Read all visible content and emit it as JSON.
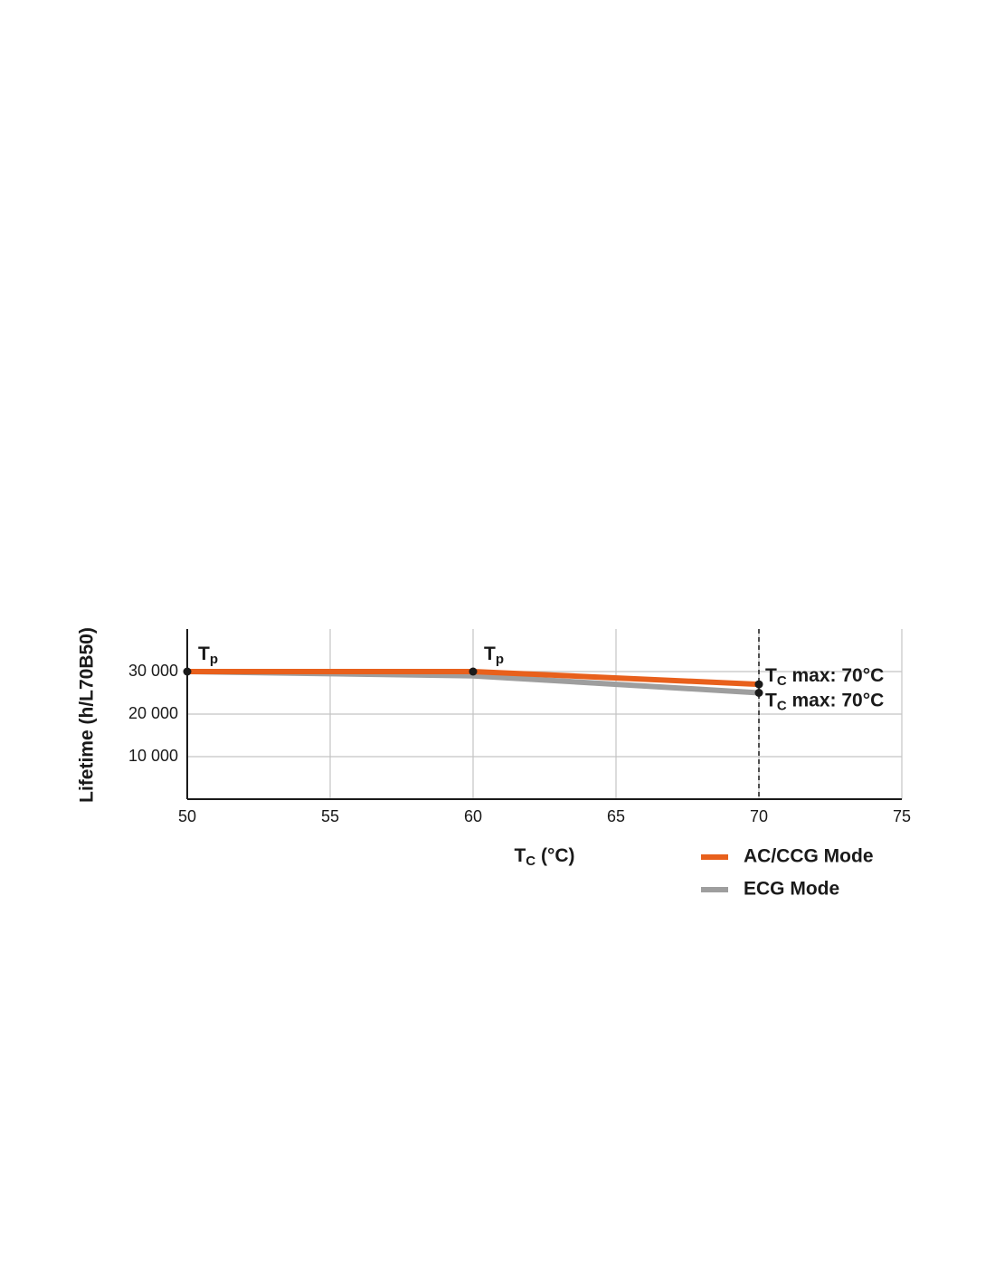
{
  "chart_data": {
    "type": "line",
    "y_label": "Lifetime (h/L70B50)",
    "x_label": [
      "T",
      "C",
      " (°C)"
    ],
    "x": [
      50,
      60,
      70
    ],
    "series": [
      {
        "name": "AC/CCG Mode",
        "color": "#e8601c",
        "values": [
          30000,
          30000,
          27000
        ]
      },
      {
        "name": "ECG Mode",
        "color": "#9e9e9e",
        "values": [
          30000,
          29000,
          25000
        ]
      }
    ],
    "xlim": [
      50,
      75
    ],
    "xticks": [
      50,
      55,
      60,
      65,
      70,
      75
    ],
    "ylim": [
      0,
      40000
    ],
    "yticks": [
      {
        "value": 10000,
        "label": "10 000"
      },
      {
        "value": 20000,
        "label": "20 000"
      },
      {
        "value": 30000,
        "label": "30 000"
      }
    ],
    "grid": true,
    "vline": 70,
    "annotations": [
      [
        "T",
        "p",
        ""
      ],
      [
        "T",
        "p",
        ""
      ],
      [
        "T",
        "C",
        " max: 70°C"
      ],
      [
        "T",
        "C",
        " max: 70°C"
      ]
    ],
    "legend": "bottom-right"
  }
}
